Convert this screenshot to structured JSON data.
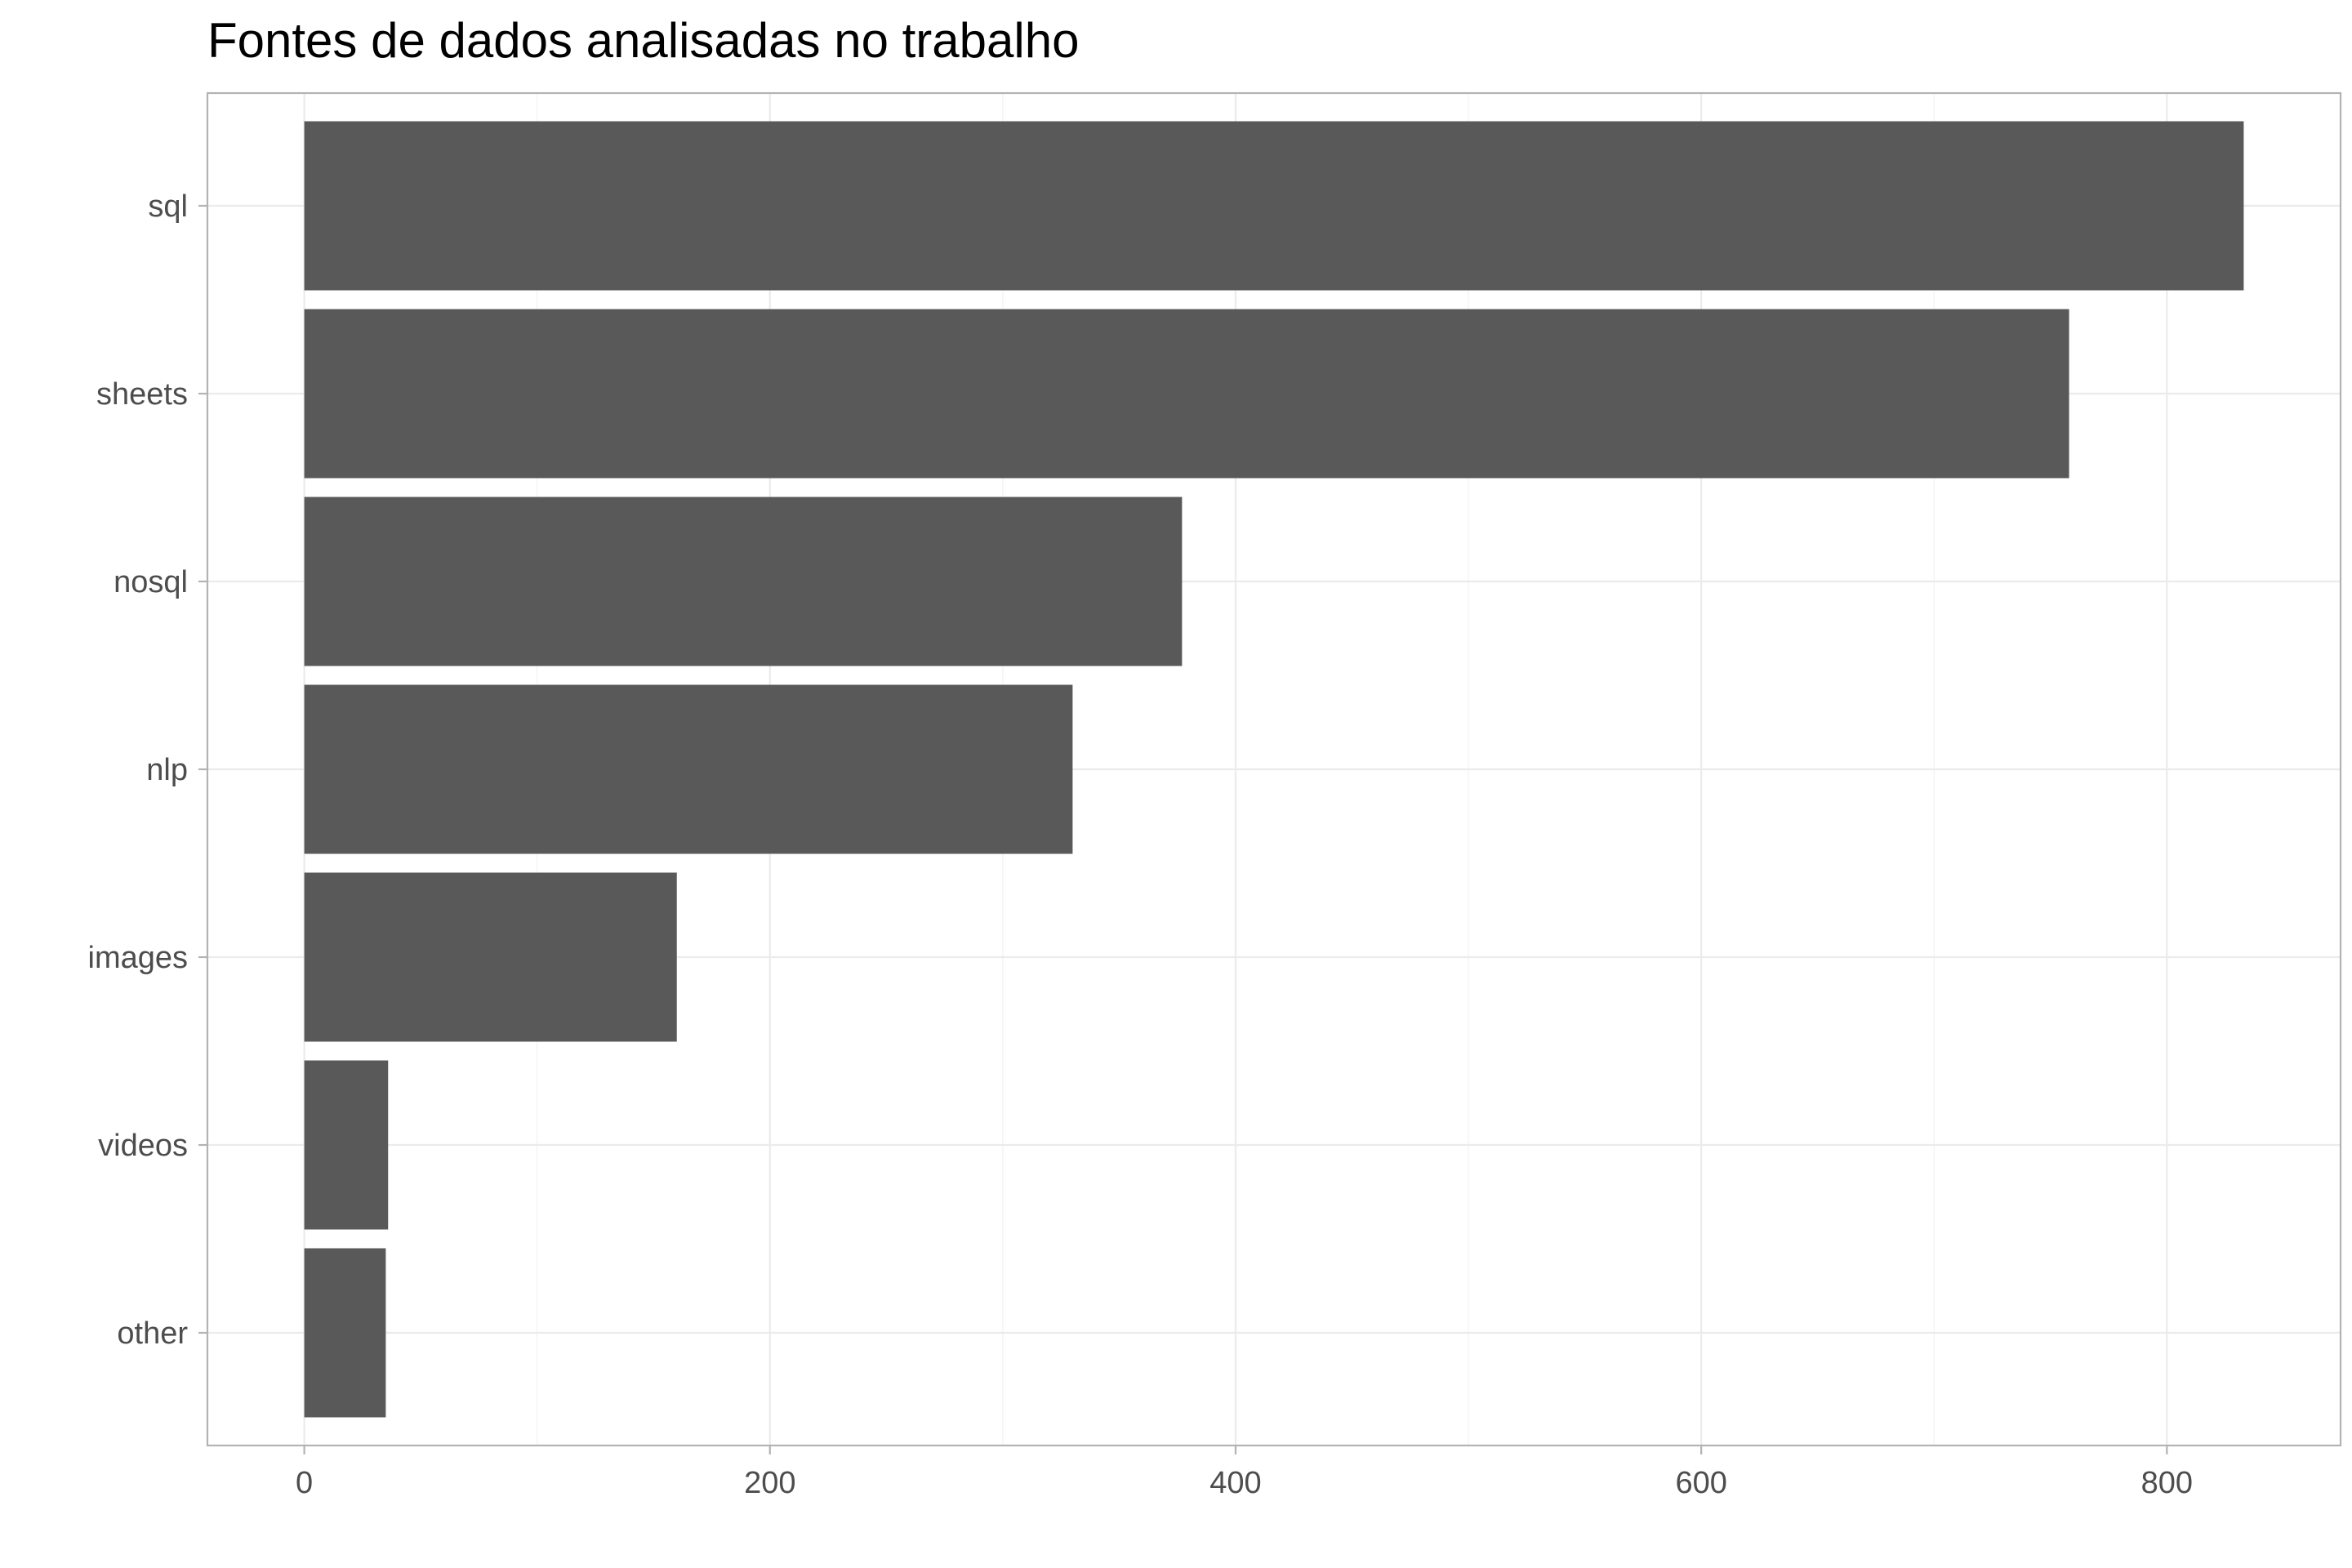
{
  "chart_data": {
    "type": "bar",
    "orientation": "horizontal",
    "title": "Fontes de dados analisadas no trabalho",
    "xlabel": "",
    "ylabel": "",
    "categories": [
      "sql",
      "sheets",
      "nosql",
      "nlp",
      "images",
      "videos",
      "other"
    ],
    "values": [
      833,
      758,
      377,
      330,
      160,
      36,
      35
    ],
    "xlim": [
      -41.6,
      874.6
    ],
    "xticks": [
      0,
      200,
      400,
      600,
      800
    ],
    "grid": true,
    "legend": "none",
    "colors": {
      "bar": "#595959"
    }
  }
}
